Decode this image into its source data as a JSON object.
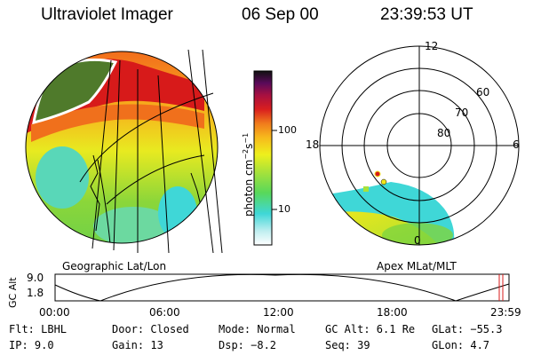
{
  "header": {
    "instrument": "Ultraviolet Imager",
    "date": "06 Sep 00",
    "time": "23:39:53 UT"
  },
  "colorbar": {
    "unit": "photon cm",
    "unit_exp1": "−2",
    "unit_s": "s",
    "unit_exp2": "−1",
    "ticks": [
      "100",
      "10"
    ]
  },
  "map_labels": {
    "left": "Geographic Lat/Lon",
    "right": "Apex MLat/MLT"
  },
  "polar": {
    "mlt": {
      "top": "12",
      "left": "18",
      "right": "6",
      "bottom": "0"
    },
    "lat": [
      "60",
      "70",
      "80"
    ]
  },
  "timeline": {
    "axis_label": "GC Alt",
    "yticks": [
      "9.0",
      "1.8"
    ],
    "times": [
      "00:00",
      "06:00",
      "12:00",
      "18:00",
      "23:59"
    ]
  },
  "info": {
    "flt": "Flt: LBHL",
    "ip": "IP:  9.0",
    "door": "Door: Closed",
    "gain": "Gain: 13",
    "mode": "Mode: Normal",
    "dsp": "Dsp:   −8.2",
    "gcalt": "GC Alt: 6.1 Re",
    "seq": "Seq: 39",
    "glat": "GLat:  −55.3",
    "glon": "GLon:   4.7"
  },
  "colors": {
    "bg": "#ffffff",
    "ring_green": "#4f7a2b",
    "red": "#d71a1a",
    "orange": "#f4a21c",
    "yellow": "#f2e61a",
    "green": "#8bd63a",
    "cyan": "#3fd7d7"
  }
}
